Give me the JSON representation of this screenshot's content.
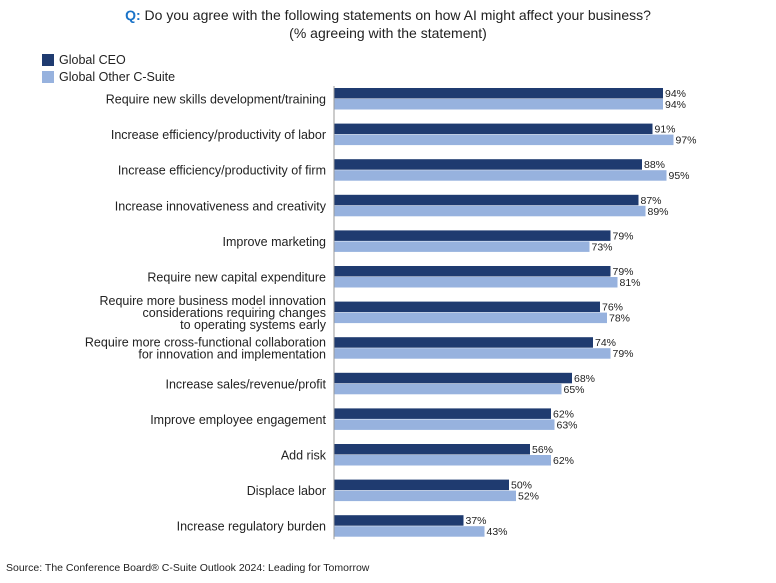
{
  "header": {
    "q_label": "Q:",
    "title": "Do you agree with the following statements on how AI might affect your business?",
    "subtitle": "(% agreeing with the statement)"
  },
  "legend": [
    {
      "name": "Global CEO",
      "color": "#1f3b70"
    },
    {
      "name": "Global Other C-Suite",
      "color": "#97b2de"
    }
  ],
  "source": "Source: The Conference Board® C-Suite Outlook 2024: Leading for Tomorrow",
  "chart_data": {
    "type": "bar",
    "orientation": "horizontal",
    "categories": [
      [
        "Require new skills development/training"
      ],
      [
        "Increase efficiency/productivity of labor"
      ],
      [
        "Increase efficiency/productivity of firm"
      ],
      [
        "Increase innovativeness and creativity"
      ],
      [
        "Improve marketing"
      ],
      [
        "Require new capital expenditure"
      ],
      [
        "Require more business model innovation",
        "considerations requiring changes",
        "to operating systems early"
      ],
      [
        "Require more cross-functional collaboration",
        "for innovation and implementation"
      ],
      [
        "Increase sales/revenue/profit"
      ],
      [
        "Improve employee engagement"
      ],
      [
        "Add risk"
      ],
      [
        "Displace labor"
      ],
      [
        "Increase regulatory burden"
      ]
    ],
    "series": [
      {
        "name": "Global CEO",
        "color": "#1f3b70",
        "values": [
          94,
          91,
          88,
          87,
          79,
          79,
          76,
          74,
          68,
          62,
          56,
          50,
          37
        ]
      },
      {
        "name": "Global Other C-Suite",
        "color": "#97b2de",
        "values": [
          94,
          97,
          95,
          89,
          73,
          81,
          78,
          79,
          65,
          63,
          62,
          52,
          43
        ]
      }
    ],
    "value_suffix": "%",
    "xlim": [
      0,
      100
    ],
    "grid": false,
    "legend_position": "top-left"
  }
}
